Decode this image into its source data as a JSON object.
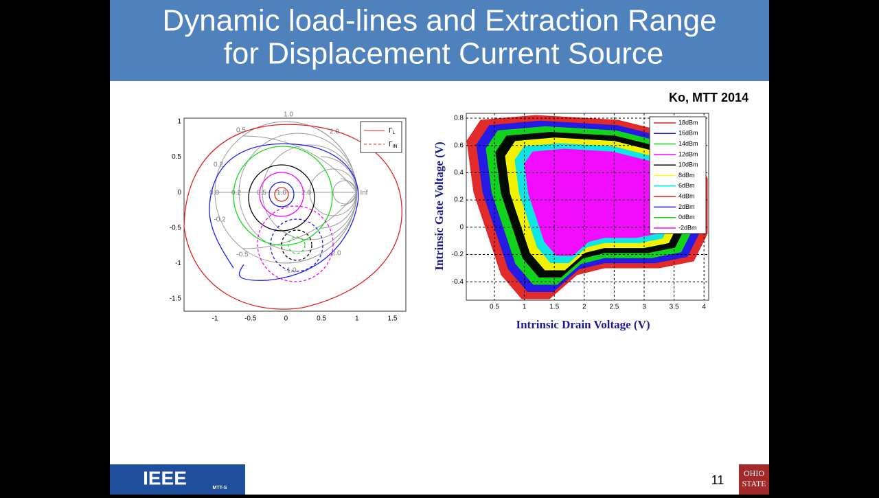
{
  "header": {
    "title_lines": [
      "Dynamic load-lines and Extraction Range",
      "for Displacement Current Source"
    ]
  },
  "citation": "Ko, MTT 2014",
  "left_plot": {
    "xticks": [
      "-1",
      "-0.5",
      "0",
      "0.5",
      "1",
      "1.5"
    ],
    "yticks": [
      "1",
      "0.5",
      "0",
      "-0.5",
      "-1",
      "-1.5"
    ],
    "smith_labels": [
      "1.0",
      "0.5",
      "2.0",
      "0.2",
      "0.0",
      "0.2",
      "0.5",
      "1.0",
      "2.0",
      "Inf",
      "-0.2",
      "-0.5",
      "-2.0",
      "-1.0"
    ],
    "legend": [
      {
        "symbol": "Γ",
        "sub": "L"
      },
      {
        "symbol": "Γ",
        "sub": "IN"
      }
    ]
  },
  "right_plot": {
    "y_label": "Intrinsic Gate Voltage (V)",
    "x_label": "Intrinsic Drain Voltage (V)",
    "xticks": [
      "0.5",
      "1",
      "1.5",
      "2",
      "2.5",
      "3",
      "3.5",
      "4"
    ],
    "yticks": [
      "0.8",
      "0.6",
      "0.4",
      "0.2",
      "0",
      "-0.2",
      "-0.4"
    ],
    "legend": [
      {
        "name": "18dBm",
        "color": "#e02020"
      },
      {
        "name": "16dBm",
        "color": "#1a1aee"
      },
      {
        "name": "14dBm",
        "color": "#10dd10"
      },
      {
        "name": "12dBm",
        "color": "#ff00ff"
      },
      {
        "name": "10dBm",
        "color": "#000000"
      },
      {
        "name": "8dBm",
        "color": "#ffff00"
      },
      {
        "name": "6dBm",
        "color": "#00e5ee"
      },
      {
        "name": "4dBm",
        "color": "#e02020"
      },
      {
        "name": "2dBm",
        "color": "#1a1aee"
      },
      {
        "name": "0dBm",
        "color": "#10dd10"
      },
      {
        "name": "-2dBm",
        "color": "#ff00ff"
      }
    ]
  },
  "footer": {
    "logo": "IEEE",
    "logo_sub": "MTT-S",
    "page": "11",
    "university": [
      "OHIO",
      "STATE"
    ]
  }
}
